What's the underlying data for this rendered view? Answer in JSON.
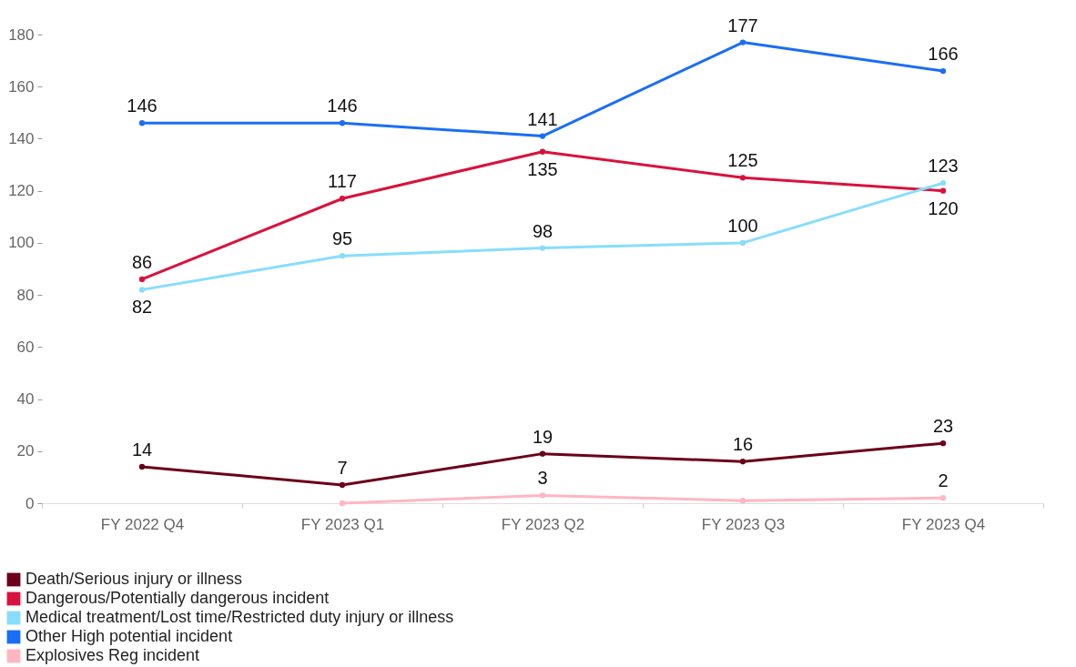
{
  "chart_data": {
    "type": "line",
    "categories": [
      "FY 2022 Q4",
      "FY 2023 Q1",
      "FY 2023 Q2",
      "FY 2023 Q3",
      "FY 2023 Q4"
    ],
    "series": [
      {
        "name": "Death/Serious injury or illness",
        "color": "#6b0018",
        "values": [
          14,
          7,
          19,
          16,
          23
        ],
        "value_labels": [
          "14",
          "7",
          "19",
          "16",
          "23"
        ]
      },
      {
        "name": "Dangerous/Potentially dangerous incident",
        "color": "#d9123d",
        "values": [
          86,
          117,
          135,
          125,
          120
        ],
        "value_labels": [
          "86",
          "117",
          "135",
          "125",
          "120"
        ]
      },
      {
        "name": "Medical treatment/Lost time/Restricted duty injury or illness",
        "color": "#88ddfc",
        "values": [
          82,
          95,
          98,
          100,
          123
        ],
        "value_labels": [
          "82",
          "95",
          "98",
          "100",
          "123"
        ]
      },
      {
        "name": "Other High potential incident",
        "color": "#1a6ef5",
        "values": [
          146,
          146,
          141,
          177,
          166
        ],
        "value_labels": [
          "146",
          "146",
          "141",
          "177",
          "166"
        ]
      },
      {
        "name": "Explosives Reg incident",
        "color": "#ffb6c1",
        "values": [
          null,
          0,
          3,
          1,
          2
        ],
        "value_labels": [
          null,
          null,
          "3",
          null,
          "2"
        ]
      }
    ],
    "ylim": [
      0,
      180
    ],
    "yticks": [
      0,
      20,
      40,
      60,
      80,
      100,
      120,
      140,
      160,
      180
    ],
    "grid": false,
    "legend": "bottom left",
    "marker": "circle",
    "line_style": "solid"
  }
}
